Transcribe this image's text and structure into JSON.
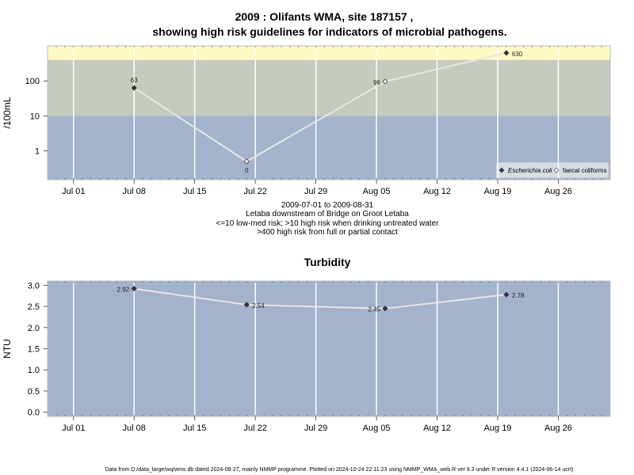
{
  "title_line1": "2009 : Olifants WMA, site 187157 ,",
  "title_line2": "showing high risk guidelines for indicators of microbial pathogens.",
  "microbial": {
    "subtitle_lines": [
      "2009-07-01 to 2009-08-31",
      "Letaba downstream of Bridge on Groot Letaba",
      "<=10 low-med risk; >10 high risk when drinking untreated water",
      ">400 high risk from full or partial contact"
    ],
    "legend": [
      "Escherichia coli",
      "faecal coliforms"
    ]
  },
  "turbidity": {
    "title": "Turbidity"
  },
  "footer": "Data from D:/data_large/wq/wms.db dated 2024-08-27, mainly NMMP programme. Plotted on 2024-10-24 22:11:23 using NMMP_WMA_web.R ver 9.3 under R version 4.4.1 (2024-06-14 ucrt)",
  "colors": {
    "low_band": "#a2b3cb",
    "mid_band": "#c4ccbf",
    "high_band": "#fdfac4",
    "line": "#e6e6e6",
    "marker": "#333333"
  },
  "chart_data": [
    {
      "type": "line",
      "ylabel": "/100mL",
      "yscale": "log",
      "yticks": [
        1,
        10,
        100
      ],
      "ylim": [
        0.15,
        1000
      ],
      "x_tick_labels": [
        "Jul 01",
        "Jul 08",
        "Jul 15",
        "Jul 22",
        "Jul 29",
        "Aug 05",
        "Aug 12",
        "Aug 19",
        "Aug 26"
      ],
      "x_tick_dates": [
        "2009-07-01",
        "2009-07-08",
        "2009-07-15",
        "2009-07-22",
        "2009-07-29",
        "2009-08-05",
        "2009-08-12",
        "2009-08-19",
        "2009-08-26"
      ],
      "xlim": [
        "2009-06-28",
        "2009-09-01"
      ],
      "risk_bands": [
        {
          "from": 0.15,
          "to": 10,
          "label": "low-med risk"
        },
        {
          "from": 10,
          "to": 400,
          "label": "high risk when drinking untreated water"
        },
        {
          "from": 400,
          "to": 1000,
          "label": "high risk from full or partial contact"
        }
      ],
      "points": [
        {
          "date": "2009-07-08",
          "value": 63,
          "label": "63",
          "series": "Escherichia coli"
        },
        {
          "date": "2009-07-21",
          "value": 0.5,
          "label": "0",
          "series": "faecal coliforms"
        },
        {
          "date": "2009-08-06",
          "value": 96,
          "label": "96",
          "series": "faecal coliforms"
        },
        {
          "date": "2009-08-20",
          "value": 630,
          "label": "630",
          "series": "Escherichia coli"
        }
      ]
    },
    {
      "type": "line",
      "title": "Turbidity",
      "ylabel": "NTU",
      "yticks": [
        0.0,
        0.5,
        1.0,
        1.5,
        2.0,
        2.5,
        3.0
      ],
      "ytick_labels": [
        "0.0",
        "0.5",
        "1.0",
        "1.5",
        "2.0",
        "2.5",
        "3.0"
      ],
      "ylim": [
        -0.1,
        3.1
      ],
      "x_tick_labels": [
        "Jul 01",
        "Jul 08",
        "Jul 15",
        "Jul 22",
        "Jul 29",
        "Aug 05",
        "Aug 12",
        "Aug 19",
        "Aug 26"
      ],
      "x_tick_dates": [
        "2009-07-01",
        "2009-07-08",
        "2009-07-15",
        "2009-07-22",
        "2009-07-29",
        "2009-08-05",
        "2009-08-12",
        "2009-08-19",
        "2009-08-26"
      ],
      "xlim": [
        "2009-06-28",
        "2009-09-01"
      ],
      "points": [
        {
          "date": "2009-07-08",
          "value": 2.92,
          "label": "2.92"
        },
        {
          "date": "2009-07-21",
          "value": 2.54,
          "label": "2.54"
        },
        {
          "date": "2009-08-06",
          "value": 2.45,
          "label": "2.45"
        },
        {
          "date": "2009-08-20",
          "value": 2.78,
          "label": "2.78"
        }
      ]
    }
  ]
}
